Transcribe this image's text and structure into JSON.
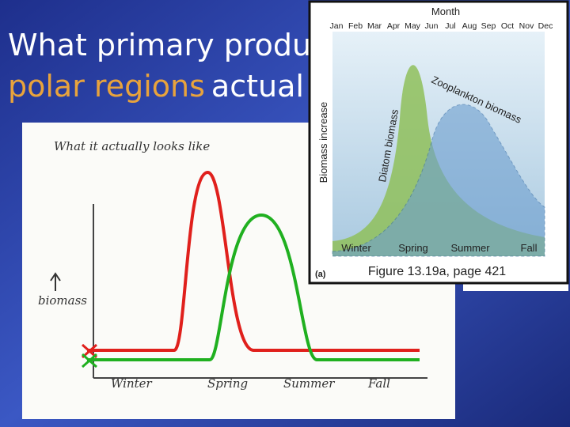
{
  "slide": {
    "title": {
      "line1": "What primary produ",
      "line2_highlight": "polar regions",
      "line2_rest": "actual"
    },
    "sketch": {
      "heading": "What it actually looks like",
      "y_label": "biomass",
      "seasons": [
        "Winter",
        "Spring",
        "Summer",
        "Fall"
      ]
    },
    "figure": {
      "x_axis_title": "Month",
      "months": [
        "Jan",
        "Feb",
        "Mar",
        "Apr",
        "May",
        "Jun",
        "Jul",
        "Aug",
        "Sep",
        "Oct",
        "Nov",
        "Dec"
      ],
      "y_label": "Biomass increase",
      "diatom_label": "Diatom biomass",
      "zooplankton_label": "Zooplankton biomass",
      "seasons": [
        "Winter",
        "Spring",
        "Summer",
        "Fall"
      ],
      "panel": "(a)",
      "caption": "Figure 13.19a, page 421"
    }
  }
}
